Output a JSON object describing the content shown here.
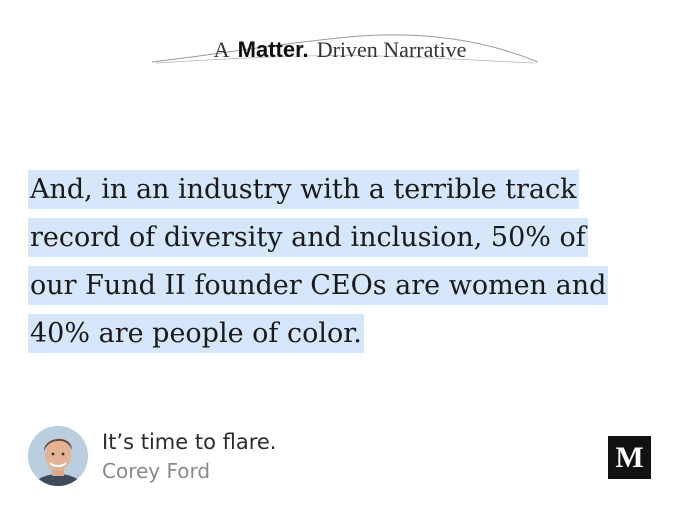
{
  "brand": {
    "prefix": "A",
    "matter": "Matter.",
    "suffix": "Driven Narrative"
  },
  "quote": {
    "lines": [
      "And, in an industry with a terrible track",
      "record of diversity and inclusion, 50% of",
      "our Fund II founder CEOs are women and",
      "40% are people of color."
    ],
    "highlight_color": "#d6e6fb"
  },
  "author": {
    "post_title": "It’s time to flare.",
    "name": "Corey Ford"
  },
  "logo": {
    "letter": "M",
    "icon": "medium-logo-icon"
  }
}
